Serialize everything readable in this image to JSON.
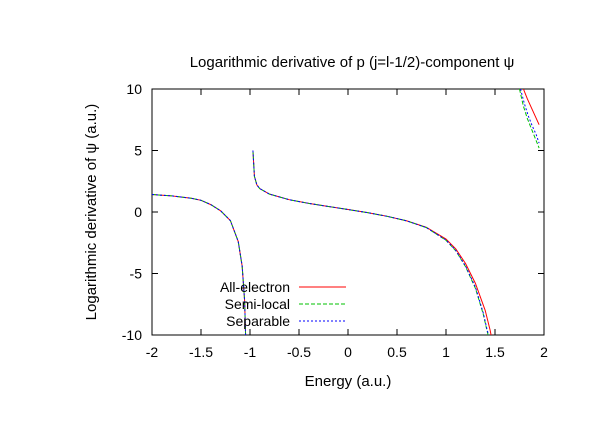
{
  "chart_data": {
    "type": "line",
    "title": "Logarithmic derivative of p (j=l-1/2)-component ψ",
    "xlabel": "Energy (a.u.)",
    "ylabel": "Logarithmic derivative of ψ (a.u.)",
    "xlim": [
      -2,
      2
    ],
    "ylim": [
      -10,
      10
    ],
    "xticks": [
      "-2",
      "-1.5",
      "-1",
      "-0.5",
      "0",
      "0.5",
      "1",
      "1.5",
      "2"
    ],
    "yticks": [
      "10",
      "5",
      "0",
      "-5",
      "-10"
    ],
    "grid": false,
    "legend_position": "bottom-left",
    "series": [
      {
        "name": "All-electron",
        "color": "#ff0000",
        "dash": "solid",
        "segments": [
          [
            [
              -2.0,
              1.42
            ],
            [
              -1.8,
              1.31
            ],
            [
              -1.6,
              1.12
            ],
            [
              -1.5,
              0.95
            ],
            [
              -1.4,
              0.6
            ],
            [
              -1.3,
              0.1
            ],
            [
              -1.2,
              -0.7
            ],
            [
              -1.12,
              -2.4
            ],
            [
              -1.08,
              -4.4
            ],
            [
              -1.055,
              -7.2
            ],
            [
              -1.045,
              -10.0
            ]
          ],
          [
            [
              -0.97,
              5.0
            ],
            [
              -0.955,
              2.9
            ],
            [
              -0.93,
              2.2
            ],
            [
              -0.9,
              1.9
            ],
            [
              -0.8,
              1.45
            ],
            [
              -0.6,
              1.0
            ],
            [
              -0.4,
              0.7
            ],
            [
              -0.2,
              0.45
            ],
            [
              0.0,
              0.2
            ],
            [
              0.2,
              -0.05
            ],
            [
              0.4,
              -0.35
            ],
            [
              0.6,
              -0.72
            ],
            [
              0.8,
              -1.25
            ],
            [
              1.0,
              -2.2
            ],
            [
              1.1,
              -3.0
            ],
            [
              1.2,
              -4.2
            ],
            [
              1.3,
              -5.8
            ],
            [
              1.4,
              -8.0
            ],
            [
              1.45,
              -9.6
            ],
            [
              1.46,
              -10.0
            ]
          ],
          [
            [
              1.79,
              10.0
            ],
            [
              1.83,
              9.2
            ],
            [
              1.87,
              8.5
            ],
            [
              1.91,
              7.8
            ],
            [
              1.95,
              7.1
            ]
          ]
        ]
      },
      {
        "name": "Semi-local",
        "color": "#00c000",
        "dash": "dashed",
        "segments": [
          [
            [
              -2.0,
              1.42
            ],
            [
              -1.8,
              1.31
            ],
            [
              -1.6,
              1.12
            ],
            [
              -1.5,
              0.95
            ],
            [
              -1.4,
              0.6
            ],
            [
              -1.3,
              0.1
            ],
            [
              -1.2,
              -0.7
            ],
            [
              -1.12,
              -2.4
            ],
            [
              -1.08,
              -4.4
            ],
            [
              -1.055,
              -7.2
            ],
            [
              -1.045,
              -10.0
            ]
          ],
          [
            [
              -0.97,
              5.0
            ],
            [
              -0.955,
              2.9
            ],
            [
              -0.93,
              2.2
            ],
            [
              -0.9,
              1.9
            ],
            [
              -0.8,
              1.45
            ],
            [
              -0.6,
              1.0
            ],
            [
              -0.4,
              0.7
            ],
            [
              -0.2,
              0.45
            ],
            [
              0.0,
              0.2
            ],
            [
              0.2,
              -0.05
            ],
            [
              0.4,
              -0.35
            ],
            [
              0.6,
              -0.72
            ],
            [
              0.8,
              -1.27
            ],
            [
              1.0,
              -2.3
            ],
            [
              1.1,
              -3.15
            ],
            [
              1.2,
              -4.45
            ],
            [
              1.3,
              -6.2
            ],
            [
              1.38,
              -8.3
            ],
            [
              1.42,
              -9.7
            ],
            [
              1.43,
              -10.0
            ]
          ],
          [
            [
              1.75,
              10.0
            ],
            [
              1.79,
              8.6
            ],
            [
              1.83,
              7.6
            ],
            [
              1.87,
              6.8
            ],
            [
              1.91,
              6.0
            ],
            [
              1.95,
              5.2
            ]
          ]
        ]
      },
      {
        "name": "Separable",
        "color": "#0000ff",
        "dash": "dotted",
        "segments": [
          [
            [
              -2.0,
              1.42
            ],
            [
              -1.8,
              1.31
            ],
            [
              -1.6,
              1.12
            ],
            [
              -1.5,
              0.95
            ],
            [
              -1.4,
              0.6
            ],
            [
              -1.3,
              0.1
            ],
            [
              -1.2,
              -0.7
            ],
            [
              -1.12,
              -2.4
            ],
            [
              -1.08,
              -4.4
            ],
            [
              -1.055,
              -7.2
            ],
            [
              -1.045,
              -10.0
            ]
          ],
          [
            [
              -0.97,
              5.0
            ],
            [
              -0.955,
              2.9
            ],
            [
              -0.93,
              2.2
            ],
            [
              -0.9,
              1.9
            ],
            [
              -0.8,
              1.45
            ],
            [
              -0.6,
              1.0
            ],
            [
              -0.4,
              0.7
            ],
            [
              -0.2,
              0.45
            ],
            [
              0.0,
              0.2
            ],
            [
              0.2,
              -0.05
            ],
            [
              0.4,
              -0.35
            ],
            [
              0.6,
              -0.72
            ],
            [
              0.8,
              -1.27
            ],
            [
              1.0,
              -2.28
            ],
            [
              1.1,
              -3.12
            ],
            [
              1.2,
              -4.4
            ],
            [
              1.3,
              -6.1
            ],
            [
              1.38,
              -8.2
            ],
            [
              1.42,
              -9.6
            ],
            [
              1.435,
              -10.0
            ]
          ],
          [
            [
              1.76,
              10.0
            ],
            [
              1.8,
              8.8
            ],
            [
              1.84,
              7.8
            ],
            [
              1.88,
              7.0
            ],
            [
              1.92,
              6.3
            ],
            [
              1.95,
              5.6
            ]
          ]
        ]
      }
    ]
  }
}
